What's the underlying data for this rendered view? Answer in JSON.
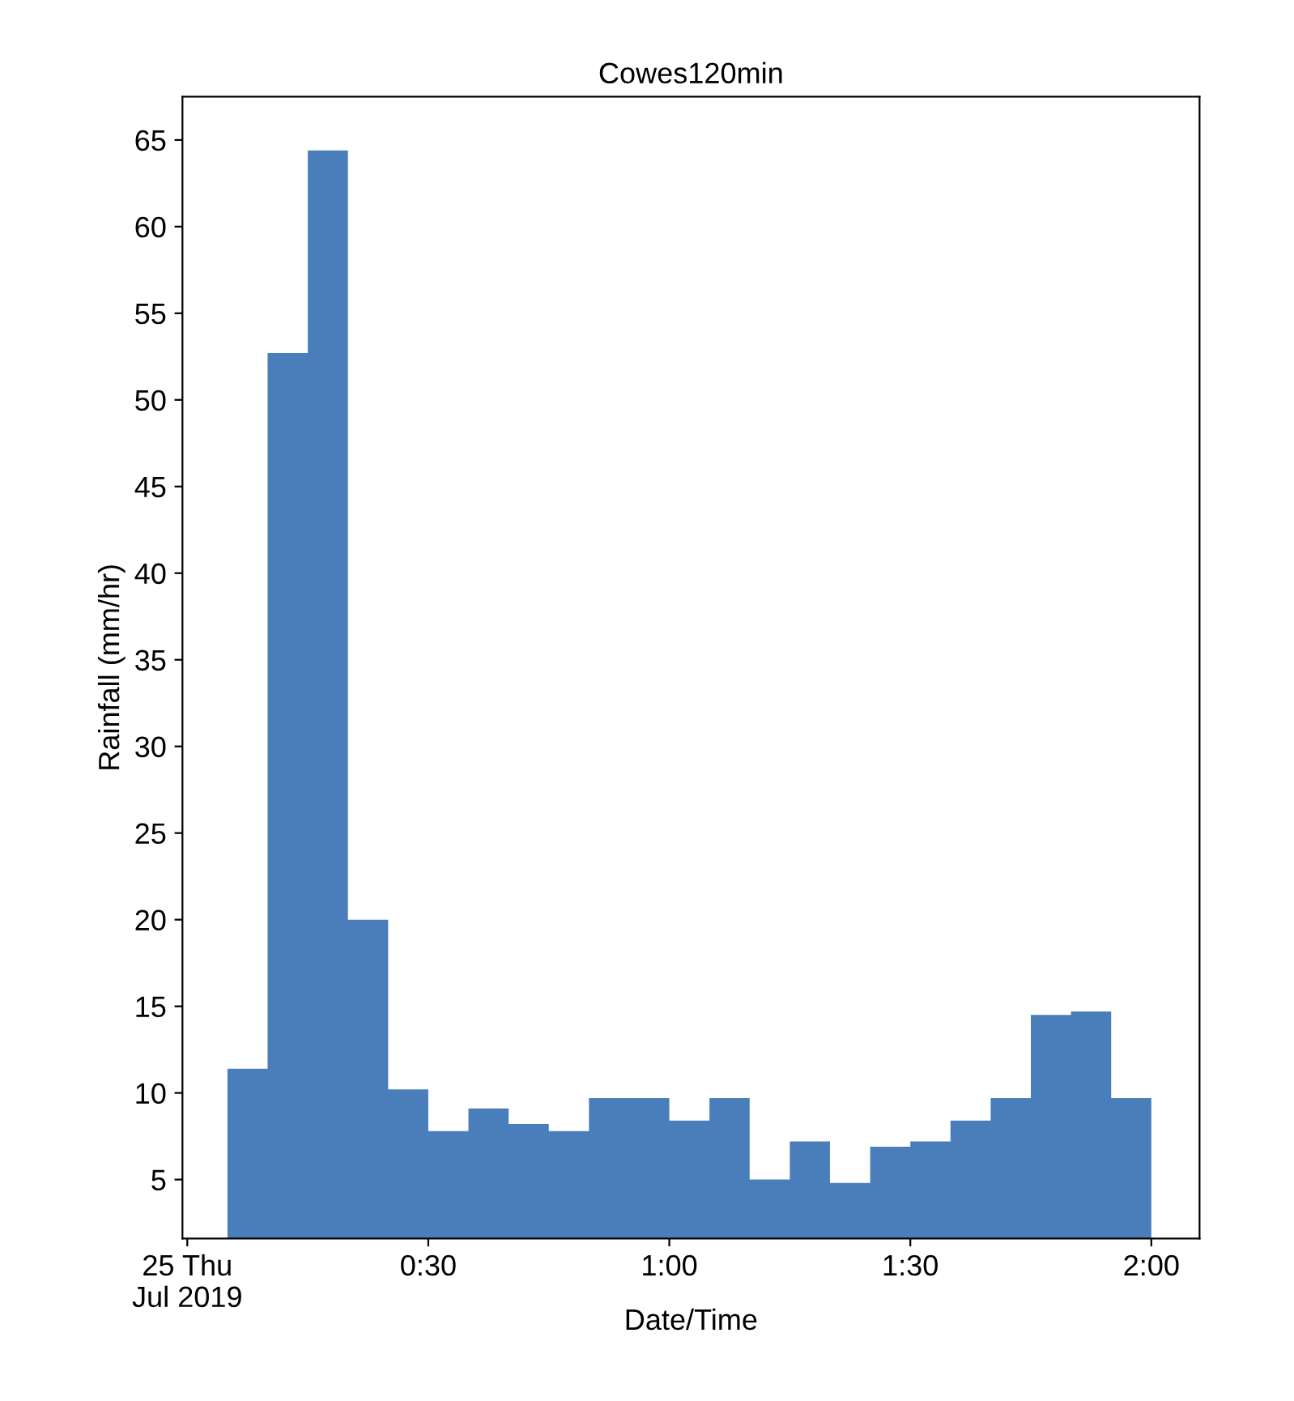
{
  "chart_data": {
    "type": "histogram",
    "title": "Cowes120min",
    "xlabel": "Date/Time",
    "ylabel": "Rainfall (mm/hr)",
    "bins": [
      0.0833,
      0.1667,
      0.25,
      0.3333,
      0.4167,
      0.5,
      0.5833,
      0.6667,
      0.75,
      0.8333,
      0.9167,
      1,
      1.0833,
      1.1667,
      1.25,
      1.3333,
      1.4167,
      1.5,
      1.5833,
      1.6667,
      1.75,
      1.8333,
      1.9167,
      2
    ],
    "values": [
      11.4,
      52.7,
      64.4,
      20.0,
      10.2,
      7.8,
      9.1,
      8.2,
      7.8,
      9.7,
      9.7,
      8.4,
      9.7,
      5.0,
      7.2,
      4.8,
      6.9,
      7.2,
      8.4,
      9.7,
      14.5,
      14.7,
      9.7
    ],
    "color": "#4a7ebb",
    "xlim": [
      -0.01,
      2.1
    ],
    "xticks": [
      {
        "value": 0,
        "label": "25 Thu\nJul 2019"
      },
      {
        "value": 0.5,
        "label": "0:30"
      },
      {
        "value": 1,
        "label": "1:00"
      },
      {
        "value": 1.5,
        "label": "1:30"
      },
      {
        "value": 2,
        "label": "2:00"
      }
    ],
    "ylim": [
      1.6,
      67.5
    ],
    "yticks": [
      5,
      10,
      15,
      20,
      25,
      30,
      35,
      40,
      45,
      50,
      55,
      60,
      65
    ],
    "grid": false
  }
}
